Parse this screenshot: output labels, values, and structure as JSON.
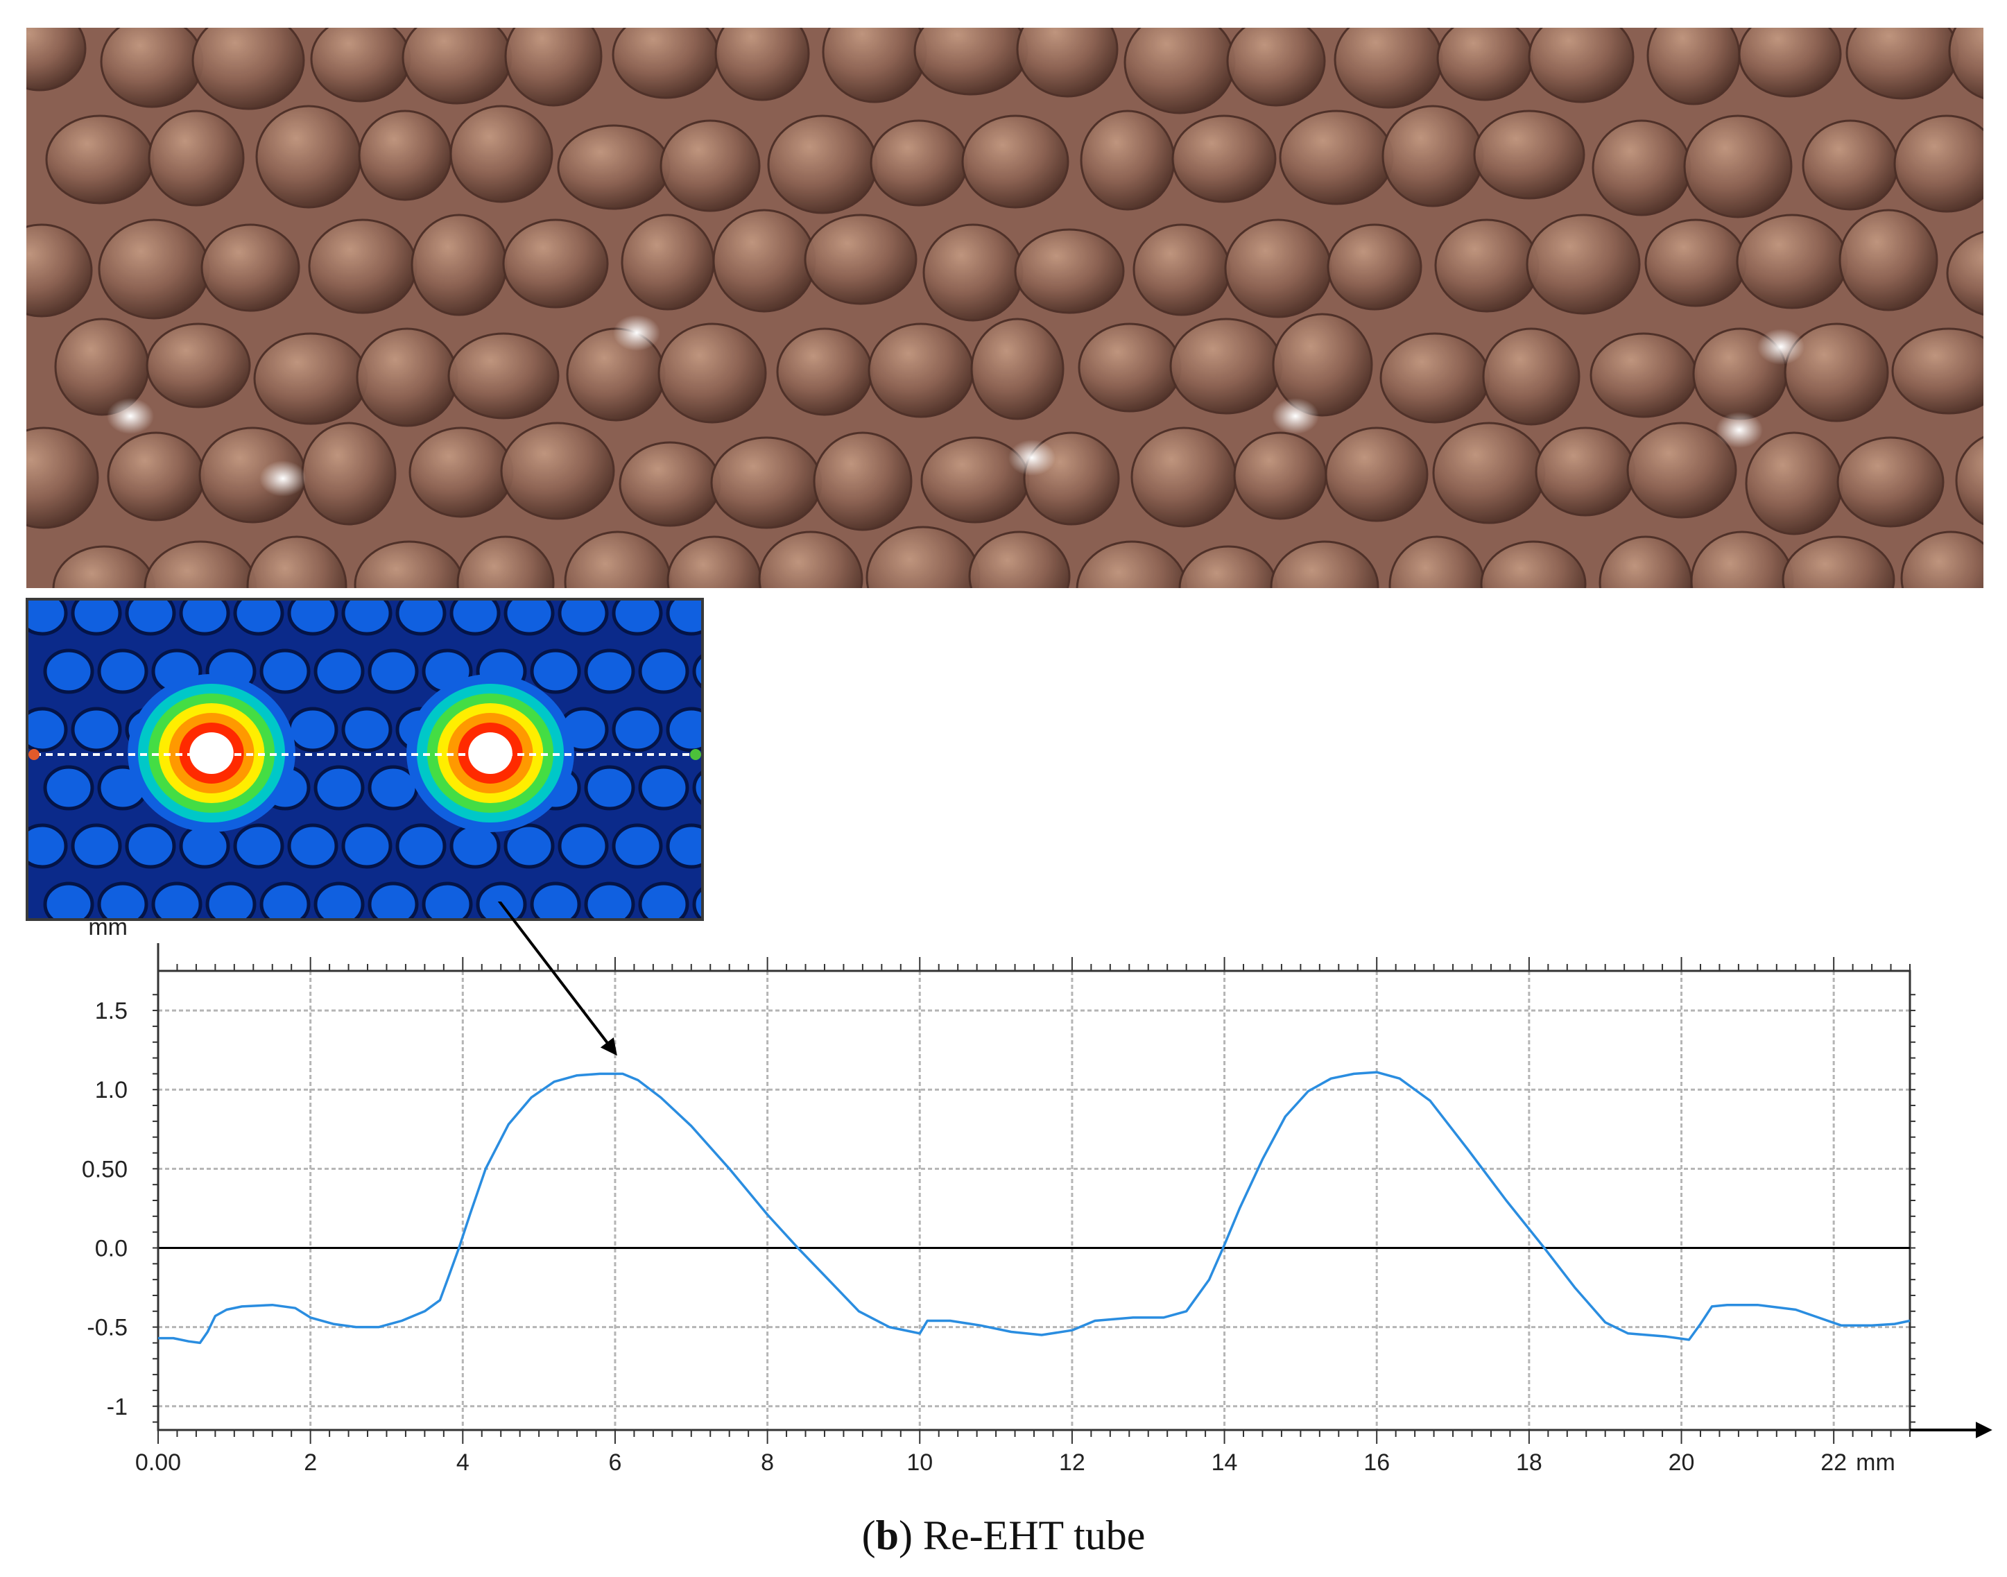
{
  "colors": {
    "photo_base": "#8a6052",
    "heatmap_background": "#0b2a8a",
    "heatmap_cell": "#1060e0",
    "profile_line": "#2a8de0",
    "grid": "#b5b5b5",
    "zero_line": "#000000",
    "arrow": "#000000"
  },
  "inset": {
    "colormap": [
      "#ffffff",
      "#ff2a00",
      "#ff9900",
      "#ffee00",
      "#44dd44",
      "#00c8c8",
      "#1060e0"
    ]
  },
  "chart_data": {
    "type": "line",
    "title": "",
    "xlabel": "",
    "ylabel": "",
    "x_unit": "mm",
    "y_unit": "mm",
    "xlim": [
      0,
      23
    ],
    "ylim": [
      -1.15,
      1.75
    ],
    "x_ticks": [
      {
        "value": 0,
        "label": "0.00"
      },
      {
        "value": 2,
        "label": "2"
      },
      {
        "value": 4,
        "label": "4"
      },
      {
        "value": 6,
        "label": "6"
      },
      {
        "value": 8,
        "label": "8"
      },
      {
        "value": 10,
        "label": "10"
      },
      {
        "value": 12,
        "label": "12"
      },
      {
        "value": 14,
        "label": "14"
      },
      {
        "value": 16,
        "label": "16"
      },
      {
        "value": 18,
        "label": "18"
      },
      {
        "value": 20,
        "label": "20"
      },
      {
        "value": 22,
        "label": "22"
      }
    ],
    "y_ticks": [
      {
        "value": 1.5,
        "label": "1.5"
      },
      {
        "value": 1.0,
        "label": "1.0"
      },
      {
        "value": 0.5,
        "label": "0.50"
      },
      {
        "value": 0.0,
        "label": "0.0"
      },
      {
        "value": -0.5,
        "label": "-0.5"
      },
      {
        "value": -1.0,
        "label": "-1"
      }
    ],
    "grid": true,
    "zero_line": true,
    "series": [
      {
        "x": [
          0.0,
          0.2,
          0.4,
          0.55,
          0.65,
          0.75,
          0.9,
          1.1,
          1.5,
          1.8,
          2.0,
          2.3,
          2.6,
          2.9,
          3.2,
          3.5,
          3.7,
          3.8,
          3.95,
          4.1,
          4.3,
          4.6,
          4.9,
          5.2,
          5.5,
          5.8,
          6.1,
          6.3,
          6.6,
          7.0,
          7.5,
          8.0,
          8.4,
          8.8,
          9.2,
          9.6,
          9.9,
          10.0,
          10.1,
          10.4,
          10.8,
          11.2,
          11.6,
          12.0,
          12.3,
          12.8,
          13.2,
          13.5,
          13.8,
          14.0,
          14.2,
          14.5,
          14.8,
          15.1,
          15.4,
          15.7,
          16.0,
          16.3,
          16.7,
          17.2,
          17.7,
          18.2,
          18.6,
          19.0,
          19.3,
          19.8,
          20.1,
          20.25,
          20.4,
          20.6,
          21.0,
          21.5,
          21.8,
          22.1,
          22.5,
          22.8,
          23.0
        ],
        "y": [
          -0.57,
          -0.57,
          -0.59,
          -0.6,
          -0.53,
          -0.43,
          -0.39,
          -0.37,
          -0.36,
          -0.38,
          -0.44,
          -0.48,
          -0.5,
          -0.5,
          -0.46,
          -0.4,
          -0.33,
          -0.2,
          0.0,
          0.22,
          0.5,
          0.78,
          0.95,
          1.05,
          1.09,
          1.1,
          1.1,
          1.06,
          0.95,
          0.77,
          0.5,
          0.21,
          0.0,
          -0.2,
          -0.4,
          -0.5,
          -0.53,
          -0.54,
          -0.46,
          -0.46,
          -0.49,
          -0.53,
          -0.55,
          -0.52,
          -0.46,
          -0.44,
          -0.44,
          -0.4,
          -0.2,
          0.02,
          0.25,
          0.56,
          0.83,
          0.99,
          1.07,
          1.1,
          1.11,
          1.07,
          0.93,
          0.62,
          0.3,
          0.0,
          -0.25,
          -0.47,
          -0.54,
          -0.56,
          -0.58,
          -0.48,
          -0.37,
          -0.36,
          -0.36,
          -0.39,
          -0.44,
          -0.49,
          -0.49,
          -0.48,
          -0.46
        ]
      }
    ]
  },
  "caption": {
    "paren_open": "(",
    "letter": "b",
    "rest": ") Re-EHT tube"
  }
}
